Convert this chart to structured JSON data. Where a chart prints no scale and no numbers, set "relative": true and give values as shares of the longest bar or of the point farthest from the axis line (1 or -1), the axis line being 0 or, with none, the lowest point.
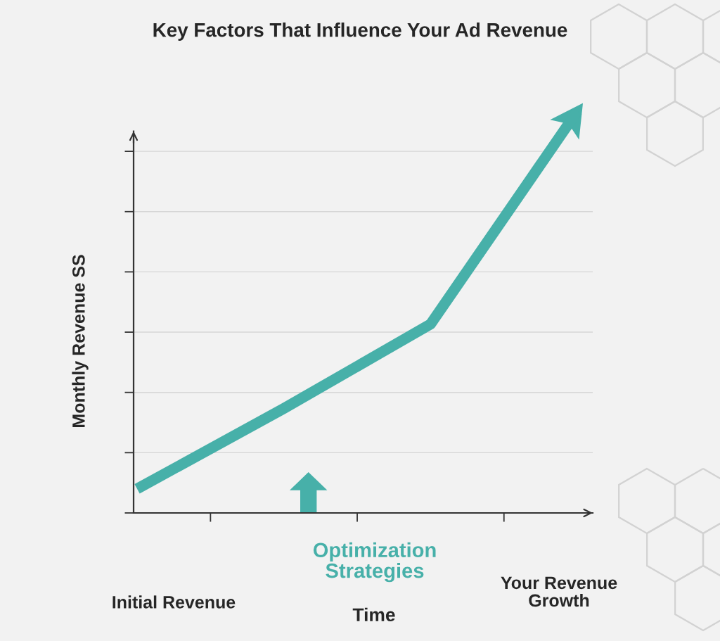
{
  "chart_data": {
    "type": "line",
    "title": "Key Factors That Influence Your Ad Revenue",
    "ylabel": "Monthly Revenue SS",
    "categories": [
      null,
      null,
      null,
      null
    ],
    "relative": true,
    "series": [
      {
        "color": "#47b0a9",
        "values": [
          0.06,
          0.26,
          0.47,
          1
        ]
      }
    ],
    "grid": "y",
    "tick_labels": false,
    "annotations": [
      "Initial Revenue",
      "Optimization Strategies",
      "Your Revenue Growth",
      "Time"
    ]
  }
}
